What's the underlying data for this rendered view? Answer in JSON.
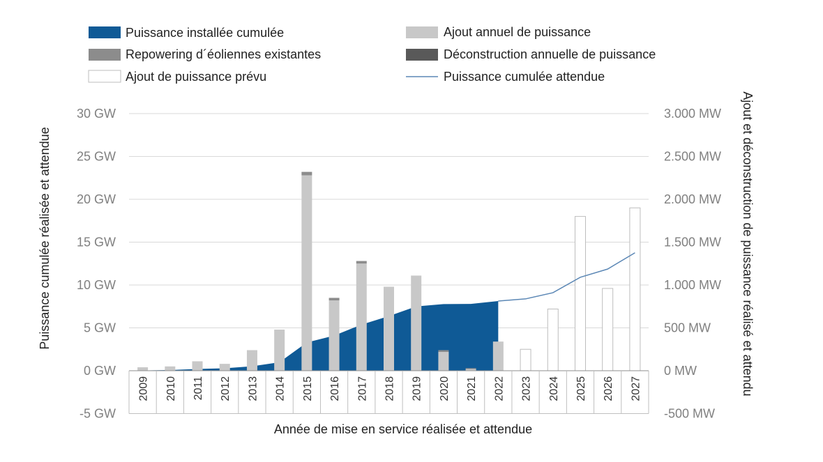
{
  "chart_data": {
    "type": "bar",
    "legend": {
      "cumulative": "Puissance installée cumulée",
      "annual_addition": "Ajout annuel de puissance",
      "repowering": "Repowering d´éoliennes existantes",
      "decommissioning": "Déconstruction annuelle de puissance",
      "planned": "Ajout de puissance prévu",
      "expected_cumulative": "Puissance cumulée attendue"
    },
    "xlabel": "Année de mise en service réalisée et attendue",
    "ylabel_left": "Puissance cumulée réalisée et attendue",
    "ylabel_right": "Ajout et déconstruction de puissance réalisé et attendu",
    "y_left_ticks": [
      "-5 GW",
      "0 GW",
      "5 GW",
      "10 GW",
      "15 GW",
      "20 GW",
      "25 GW",
      "30 GW"
    ],
    "y_right_ticks": [
      "-500 MW",
      "0 MW",
      "500 MW",
      "1.000 MW",
      "1.500 MW",
      "2.000 MW",
      "2.500 MW",
      "3.000 MW"
    ],
    "ylim_left_gw": [
      -5,
      30
    ],
    "ylim_right_mw": [
      -500,
      3000
    ],
    "categories": [
      "2009",
      "2010",
      "2011",
      "2012",
      "2013",
      "2014",
      "2015",
      "2016",
      "2017",
      "2018",
      "2019",
      "2020",
      "2021",
      "2022",
      "2023",
      "2024",
      "2025",
      "2026",
      "2027"
    ],
    "cumulative_gw": [
      0.03,
      0.08,
      0.2,
      0.28,
      0.52,
      0.99,
      3.29,
      4.1,
      5.38,
      6.37,
      7.5,
      7.77,
      7.79,
      8.13,
      null,
      null,
      null,
      null,
      null
    ],
    "expected_cumulative_gw": [
      null,
      null,
      null,
      null,
      null,
      null,
      null,
      null,
      null,
      null,
      null,
      null,
      null,
      8.13,
      8.38,
      9.1,
      10.9,
      11.86,
      13.76
    ],
    "annual_addition_mw": [
      40,
      50,
      110,
      80,
      240,
      480,
      2280,
      820,
      1250,
      980,
      1110,
      220,
      20,
      340,
      null,
      null,
      null,
      null,
      null
    ],
    "repowering_mw": [
      0,
      0,
      0,
      0,
      0,
      0,
      40,
      30,
      30,
      0,
      0,
      20,
      10,
      0,
      null,
      null,
      null,
      null,
      null
    ],
    "decommissioning_mw": [
      0,
      0,
      0,
      0,
      0,
      0,
      0,
      0,
      0,
      0,
      0,
      0,
      0,
      0,
      null,
      null,
      null,
      null,
      null
    ],
    "planned_addition_mw": [
      null,
      null,
      null,
      null,
      null,
      null,
      null,
      null,
      null,
      null,
      null,
      null,
      null,
      null,
      250,
      720,
      1800,
      960,
      1900
    ],
    "colors": {
      "cumulative": "#0f5a96",
      "annual_addition": "#c8c8c8",
      "repowering": "#8c8c8c",
      "decommissioning": "#595959",
      "planned_fill": "#ffffff",
      "planned_stroke": "#bdbdbd",
      "expected_line": "#5b87b5",
      "grid": "#d9d9d9",
      "tick_text": "#808080"
    },
    "grid": "horizontal",
    "legend_position": "top"
  }
}
